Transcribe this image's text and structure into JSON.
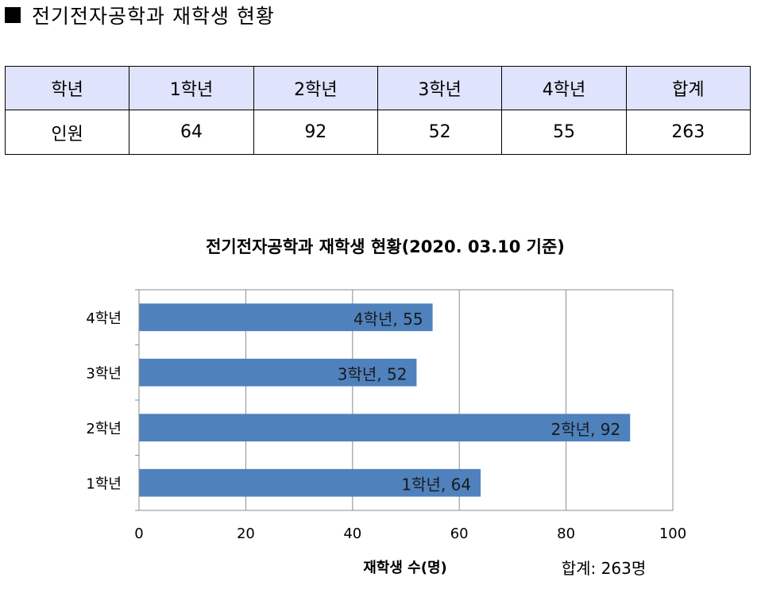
{
  "heading": {
    "bullet": "■",
    "title": "전기전자공학과 재학생 현황"
  },
  "table": {
    "headers": [
      "학년",
      "1학년",
      "2학년",
      "3학년",
      "4학년",
      "합계"
    ],
    "row": [
      "인원",
      "64",
      "92",
      "52",
      "55",
      "263"
    ]
  },
  "chart_data": {
    "type": "bar",
    "orientation": "horizontal",
    "title": "전기전자공학과 재학생 현황(2020. 03.10 기준)",
    "categories": [
      "1학년",
      "2학년",
      "3학년",
      "4학년"
    ],
    "values": [
      64,
      92,
      52,
      55
    ],
    "data_labels": [
      "1학년, 64",
      "2학년, 92",
      "3학년, 52",
      "4학년, 55"
    ],
    "xlabel": "재학생 수(명)",
    "ylabel": "",
    "xlim": [
      0,
      100
    ],
    "x_ticks": [
      0,
      20,
      40,
      60,
      80,
      100
    ],
    "grid": true,
    "legend": "none",
    "bar_color": "#4f81bd",
    "annotation": "합계: 263명"
  }
}
